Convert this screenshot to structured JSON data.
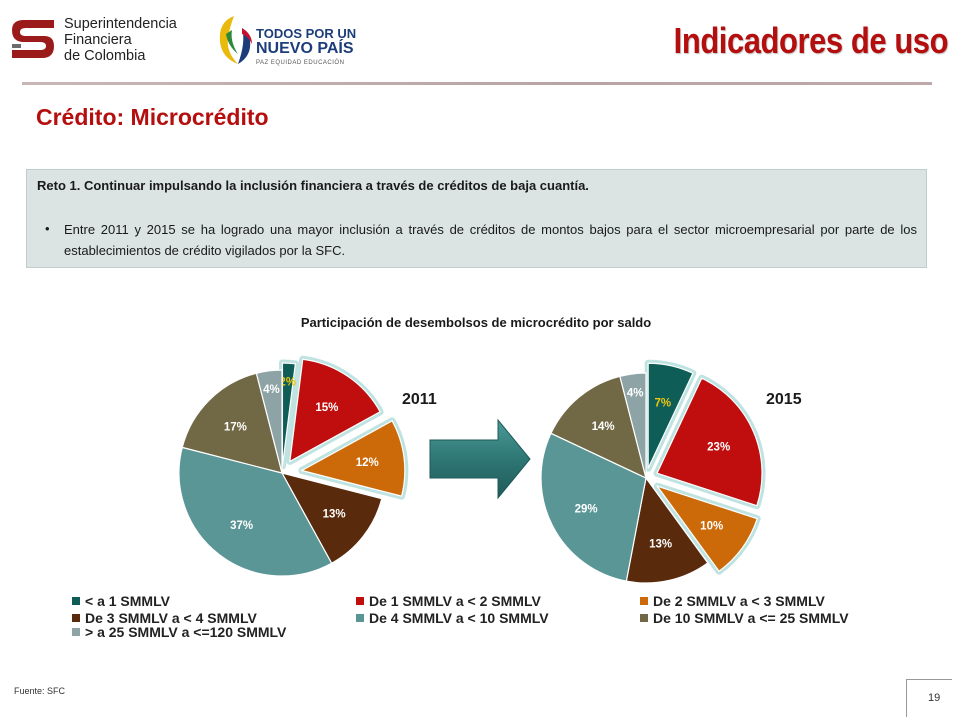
{
  "header": {
    "logo_sfc_lines": [
      "Superintendencia",
      "Financiera",
      "de Colombia"
    ],
    "logo_gov_lines": [
      "TODOS POR UN",
      "NUEVO PAÍS",
      "PAZ  EQUIDAD  EDUCACIÓN"
    ],
    "title": "Indicadores de uso"
  },
  "section_title": "Crédito: Microcrédito",
  "challenge": {
    "title": "Reto 1. Continuar impulsando la inclusión financiera a través de créditos de baja cuantía.",
    "bullet_symbol": "•",
    "bullet": "Entre 2011 y 2015 se ha logrado una mayor inclusión a través de créditos de montos bajos para el sector microempresarial por parte de los establecimientos de crédito vigilados por la SFC."
  },
  "footer": {
    "source": "Fuente: SFC",
    "page_number": "19"
  },
  "colors": {
    "brand_red": "#b50e0e",
    "box_bg": "#dbe3e3",
    "arrow": "#2e7775"
  },
  "chart_data": {
    "type": "pie",
    "title": "Participación de desembolsos de microcrédito por saldo",
    "categories": [
      "< a 1 SMMLV",
      "De 1 SMMLV a < 2 SMMLV",
      "De 2 SMMLV a < 3 SMMLV",
      "De 3 SMMLV a < 4 SMMLV",
      "De 4 SMMLV a < 10 SMMLV",
      "De 10 SMMLV a <= 25 SMMLV",
      "> a 25 SMMLV a <=120 SMMLV"
    ],
    "legend_order": [
      0,
      1,
      2,
      3,
      4,
      5,
      6
    ],
    "colors": [
      "#0e5e57",
      "#c00e0e",
      "#cc6a0a",
      "#5a2a0c",
      "#5a9696",
      "#716945",
      "#8ea3a6"
    ],
    "highlighted": [
      0,
      1,
      2
    ],
    "series": [
      {
        "name": "2011",
        "values": [
          2,
          15,
          12,
          13,
          37,
          17,
          4
        ],
        "labels": [
          "2%",
          "15%",
          "12%",
          "13%",
          "37%",
          "17%",
          "4%"
        ]
      },
      {
        "name": "2015",
        "values": [
          7,
          23,
          10,
          13,
          29,
          14,
          4
        ],
        "labels": [
          "7%",
          "23%",
          "10%",
          "13%",
          "29%",
          "14%",
          "4%"
        ]
      }
    ],
    "legend_position": "bottom"
  }
}
